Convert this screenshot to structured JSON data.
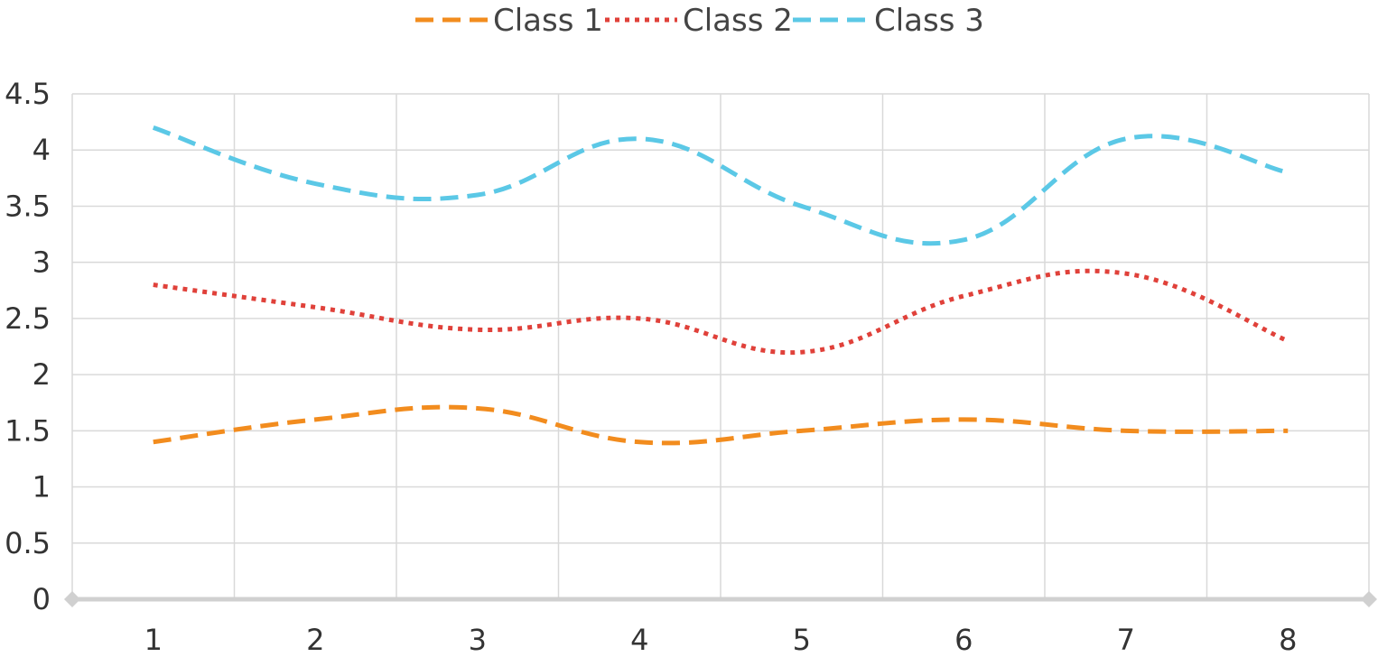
{
  "chart_data": {
    "type": "line",
    "title": "",
    "xlabel": "",
    "ylabel": "",
    "smooth": true,
    "categories": [
      "1",
      "2",
      "3",
      "4",
      "5",
      "6",
      "7",
      "8"
    ],
    "ylim": [
      0,
      4.5
    ],
    "yticks": [
      "0",
      "0.5",
      "1",
      "1.5",
      "2",
      "2.5",
      "3",
      "3.5",
      "4",
      "4.5"
    ],
    "grid": true,
    "legend_position": "top-center",
    "series": [
      {
        "name": "Class 1",
        "values": [
          1.4,
          1.6,
          1.7,
          1.4,
          1.5,
          1.6,
          1.5,
          1.5
        ],
        "color": "#F28C1E",
        "dash": "dashed"
      },
      {
        "name": "Class 2",
        "values": [
          2.8,
          2.6,
          2.4,
          2.5,
          2.2,
          2.7,
          2.9,
          2.3
        ],
        "color": "#E0413A",
        "dash": "dotted"
      },
      {
        "name": "Class 3",
        "values": [
          4.2,
          3.7,
          3.6,
          4.1,
          3.5,
          3.2,
          4.1,
          3.8
        ],
        "color": "#5BC8E6",
        "dash": "dashed"
      }
    ]
  }
}
